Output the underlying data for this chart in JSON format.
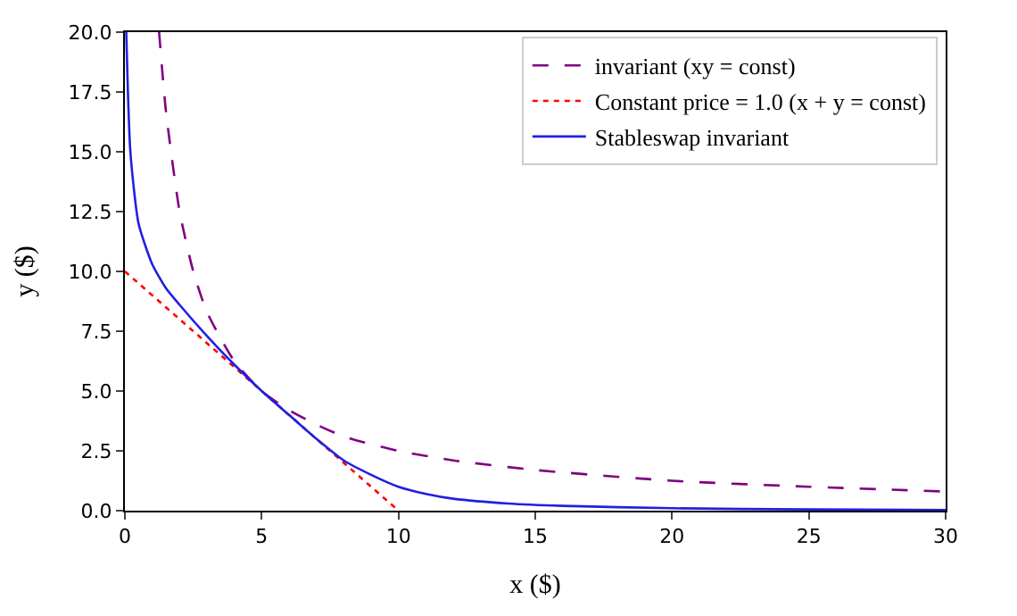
{
  "chart_data": {
    "type": "line",
    "xlabel": "x ($)",
    "ylabel": "y ($)",
    "xlim": [
      0,
      30
    ],
    "xticks": [
      0,
      5,
      10,
      15,
      20,
      25,
      30
    ],
    "ylim": [
      0,
      20
    ],
    "yticks": [
      {
        "value": 0,
        "label": "0.0"
      },
      {
        "value": 2.5,
        "label": "2.5"
      },
      {
        "value": 5,
        "label": "5.0"
      },
      {
        "value": 7.5,
        "label": "7.5"
      },
      {
        "value": 10,
        "label": "10.0"
      },
      {
        "value": 12.5,
        "label": "12.5"
      },
      {
        "value": 15,
        "label": "15.0"
      },
      {
        "value": 17.5,
        "label": "17.5"
      },
      {
        "value": 20,
        "label": "20.0"
      }
    ],
    "legend": "top right",
    "marker": "none",
    "series": [
      {
        "name": "invariant (xy = const)",
        "color": "#800080",
        "line_style": "dashed",
        "x": [
          1.25,
          1.5,
          2,
          2.5,
          3,
          4,
          5,
          6,
          7,
          8,
          10,
          12,
          15,
          20,
          25,
          30
        ],
        "values": [
          20,
          16.7,
          12.5,
          10,
          8.3,
          6.25,
          5,
          4.2,
          3.6,
          3.1,
          2.5,
          2.1,
          1.7,
          1.25,
          1.0,
          0.8
        ]
      },
      {
        "name": "Constant price = 1.0 (x + y = const)",
        "color": "#ff0000",
        "line_style": "dotted",
        "x": [
          0,
          10
        ],
        "values": [
          10,
          0
        ]
      },
      {
        "name": "Stableswap invariant",
        "color": "#2020e0",
        "line_style": "solid",
        "x": [
          0.05,
          0.2,
          0.5,
          1,
          1.5,
          2,
          3,
          4,
          5,
          6,
          7,
          8,
          9,
          10,
          11,
          12,
          14,
          16,
          20,
          25,
          30
        ],
        "values": [
          20,
          15,
          12,
          10.3,
          9.3,
          8.6,
          7.3,
          6.1,
          5,
          4,
          3,
          2.1,
          1.5,
          1.0,
          0.7,
          0.5,
          0.3,
          0.2,
          0.1,
          0.05,
          0.03
        ]
      }
    ]
  }
}
